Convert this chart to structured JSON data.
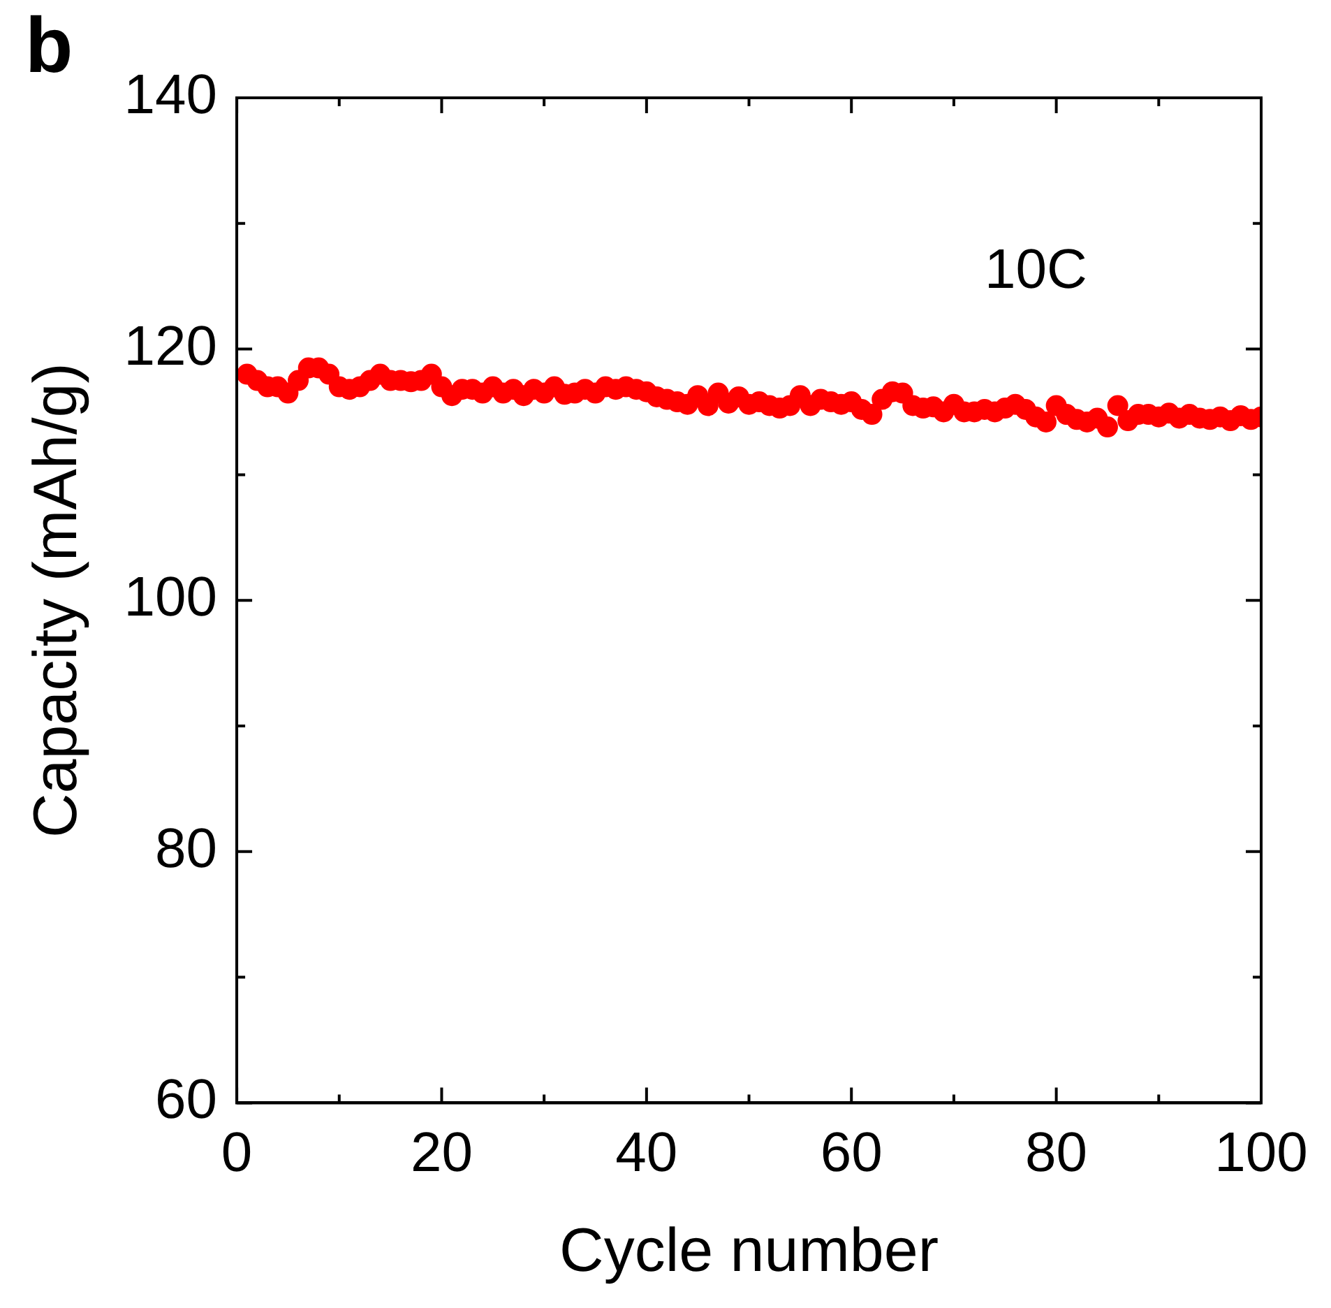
{
  "chart_data": {
    "type": "scatter",
    "xlabel": "Cycle number",
    "ylabel": "Capacity (mAh/g)",
    "annotations": [
      "b",
      "10C"
    ],
    "xlim": [
      0,
      100
    ],
    "xticks": [
      0,
      {
        "value": 10,
        "label": null
      },
      20,
      {
        "value": 30,
        "label": null
      },
      40,
      {
        "value": 50,
        "label": null
      },
      60,
      {
        "value": 70,
        "label": null
      },
      80,
      {
        "value": 90,
        "label": null
      },
      100
    ],
    "ylim": [
      60,
      140
    ],
    "yticks": [
      60,
      {
        "value": 70,
        "label": null
      },
      80,
      {
        "value": 90,
        "label": null
      },
      100,
      {
        "value": 110,
        "label": null
      },
      120,
      {
        "value": 130,
        "label": null
      },
      140
    ],
    "grid": false,
    "legend": false,
    "marker": "circle",
    "series": [
      {
        "color": "#ff0000",
        "x": [
          1,
          2,
          3,
          4,
          5,
          6,
          7,
          8,
          9,
          10,
          11,
          12,
          13,
          14,
          15,
          16,
          17,
          18,
          19,
          20,
          21,
          22,
          23,
          24,
          25,
          26,
          27,
          28,
          29,
          30,
          31,
          32,
          33,
          34,
          35,
          36,
          37,
          38,
          39,
          40,
          41,
          42,
          43,
          44,
          45,
          46,
          47,
          48,
          49,
          50,
          51,
          52,
          53,
          54,
          55,
          56,
          57,
          58,
          59,
          60,
          61,
          62,
          63,
          64,
          65,
          66,
          67,
          68,
          69,
          70,
          71,
          72,
          73,
          74,
          75,
          76,
          77,
          78,
          79,
          80,
          81,
          82,
          83,
          84,
          85,
          86,
          87,
          88,
          89,
          90,
          91,
          92,
          93,
          94,
          95,
          96,
          97,
          98,
          99,
          100
        ],
        "values": [
          118,
          117.5,
          117,
          117,
          116.5,
          117.5,
          118.5,
          118.5,
          118,
          117,
          116.8,
          117,
          117.5,
          118,
          117.5,
          117.5,
          117.4,
          117.5,
          118,
          117,
          116.3,
          116.8,
          116.8,
          116.5,
          117,
          116.5,
          116.8,
          116.3,
          116.8,
          116.5,
          117,
          116.4,
          116.5,
          116.8,
          116.5,
          117,
          116.8,
          117,
          116.8,
          116.6,
          116.2,
          116,
          115.8,
          115.6,
          116.3,
          115.5,
          116.5,
          115.7,
          116.2,
          115.6,
          115.8,
          115.5,
          115.3,
          115.5,
          116.3,
          115.5,
          116,
          115.8,
          115.6,
          115.8,
          115.2,
          114.8,
          116,
          116.6,
          116.5,
          115.5,
          115.3,
          115.4,
          115,
          115.6,
          115,
          115,
          115.2,
          115,
          115.3,
          115.6,
          115.2,
          114.6,
          114.2,
          115.5,
          114.8,
          114.4,
          114.2,
          114.5,
          113.8,
          115.5,
          114.3,
          114.8,
          114.8,
          114.6,
          114.9,
          114.5,
          114.8,
          114.5,
          114.4,
          114.6,
          114.3,
          114.7,
          114.4,
          114.6
        ]
      }
    ]
  }
}
